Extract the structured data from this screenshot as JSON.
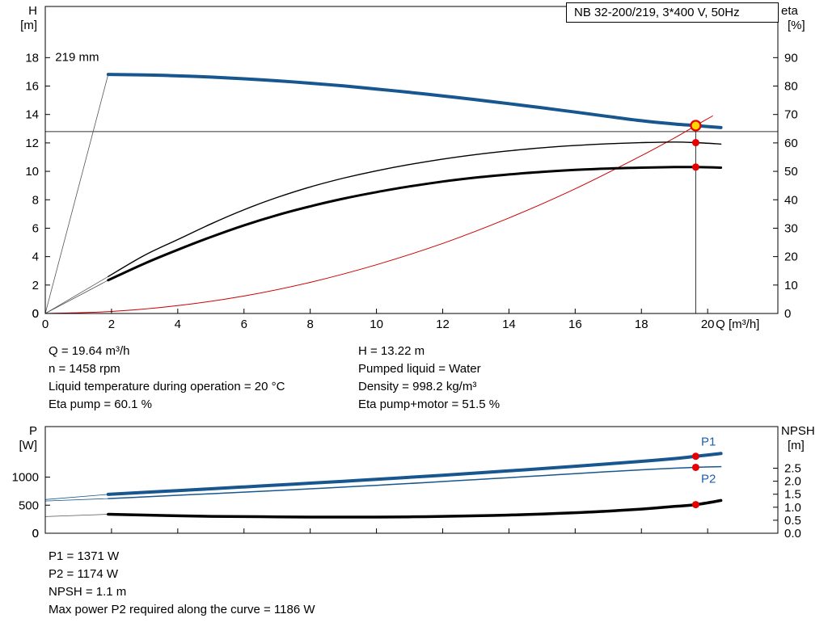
{
  "title_box": {
    "label": "NB 32-200/219, 3*400 V, 50Hz"
  },
  "info_top": {
    "left": [
      "Q = 19.64 m³/h",
      "n = 1458 rpm",
      "Liquid temperature during operation = 20 °C",
      "Eta pump = 60.1 %"
    ],
    "right": [
      "H = 13.22 m",
      "Pumped liquid = Water",
      "Density = 998.2 kg/m³",
      "Eta pump+motor = 51.5 %"
    ]
  },
  "info_bottom": [
    "P1 = 1371 W",
    "P2 = 1174 W",
    "NPSH = 1.1 m",
    "Max power P2 required along the curve = 1186 W"
  ],
  "colors": {
    "curve_blue": "#17568f",
    "curve_black": "#000000",
    "curve_red": "#cc0000",
    "lead_gray": "#555555",
    "marker_red": "#e60000",
    "marker_yellow": "#ffd400",
    "label_blue": "#1f5fa8",
    "crosshair": "#333333"
  },
  "chart_data": [
    {
      "id": "hq",
      "type": "line",
      "title": "NB 32-200/219, 3*400 V, 50Hz",
      "x_axis": {
        "label": "Q [m³/h]",
        "range": [
          0,
          22.12
        ],
        "ticks": [
          {
            "v": 0,
            "t": "0"
          },
          {
            "v": 2,
            "t": "2"
          },
          {
            "v": 4,
            "t": "4"
          },
          {
            "v": 6,
            "t": "6"
          },
          {
            "v": 8,
            "t": "8"
          },
          {
            "v": 10,
            "t": "10"
          },
          {
            "v": 12,
            "t": "12"
          },
          {
            "v": 14,
            "t": "14"
          },
          {
            "v": 16,
            "t": "16"
          },
          {
            "v": 18,
            "t": "18"
          },
          {
            "v": 20,
            "t": "20"
          }
        ]
      },
      "y_left": {
        "label": [
          "H",
          "[m]"
        ],
        "range": [
          0,
          21.6
        ],
        "ticks": [
          {
            "v": 0,
            "t": "0"
          },
          {
            "v": 2,
            "t": "2"
          },
          {
            "v": 4,
            "t": "4"
          },
          {
            "v": 6,
            "t": "6"
          },
          {
            "v": 8,
            "t": "8"
          },
          {
            "v": 10,
            "t": "10"
          },
          {
            "v": 12,
            "t": "12"
          },
          {
            "v": 14,
            "t": "14"
          },
          {
            "v": 16,
            "t": "16"
          },
          {
            "v": 18,
            "t": "18"
          }
        ]
      },
      "y_right": {
        "label": [
          "eta",
          "[%]"
        ],
        "range": [
          0,
          108
        ],
        "ticks": [
          {
            "v": 0,
            "t": "0"
          },
          {
            "v": 10,
            "t": "10"
          },
          {
            "v": 20,
            "t": "20"
          },
          {
            "v": 30,
            "t": "30"
          },
          {
            "v": 40,
            "t": "40"
          },
          {
            "v": 50,
            "t": "50"
          },
          {
            "v": 60,
            "t": "60"
          },
          {
            "v": 70,
            "t": "70"
          },
          {
            "v": 80,
            "t": "80"
          },
          {
            "v": 90,
            "t": "90"
          }
        ]
      },
      "crosshair": {
        "q": 19.64,
        "v_top": 13.22,
        "h_line": 12.8
      },
      "annotations": [
        {
          "text": "219 mm",
          "q": 0.3,
          "v": 17.75,
          "axis": "left",
          "color": "#000000"
        }
      ],
      "series": [
        {
          "name": "pump-head-leadin",
          "axis": "left",
          "color": "#555555",
          "width": 0.8,
          "smooth": false,
          "points": [
            [
              0,
              0
            ],
            [
              1.9,
              16.82
            ]
          ]
        },
        {
          "name": "eta-pump-leadin",
          "axis": "right",
          "color": "#555555",
          "width": 0.8,
          "smooth": false,
          "points": [
            [
              0,
              0
            ],
            [
              1.9,
              13
            ]
          ]
        },
        {
          "name": "eta-pump-motor-leadin",
          "axis": "right",
          "color": "#555555",
          "width": 0.8,
          "smooth": false,
          "points": [
            [
              0,
              0
            ],
            [
              1.9,
              11.7
            ]
          ]
        },
        {
          "name": "system-curve",
          "axis": "left",
          "color": "#cc0000",
          "width": 1,
          "smooth": true,
          "points": [
            [
              0,
              0
            ],
            [
              2,
              0.14
            ],
            [
              4,
              0.55
            ],
            [
              6,
              1.23
            ],
            [
              8,
              2.19
            ],
            [
              10,
              3.43
            ],
            [
              12,
              4.93
            ],
            [
              14,
              6.72
            ],
            [
              16,
              8.77
            ],
            [
              18,
              11.1
            ],
            [
              19,
              12.35
            ],
            [
              19.64,
              13.22
            ],
            [
              20.15,
              13.9
            ]
          ]
        },
        {
          "name": "eta-pump",
          "axis": "right",
          "color": "#000000",
          "width": 1.4,
          "smooth": true,
          "points": [
            [
              1.9,
              13
            ],
            [
              3,
              20.5
            ],
            [
              4,
              26
            ],
            [
              5,
              31.5
            ],
            [
              6,
              36.5
            ],
            [
              7,
              40.8
            ],
            [
              8,
              44.5
            ],
            [
              9,
              47.6
            ],
            [
              10,
              50.2
            ],
            [
              11,
              52.4
            ],
            [
              12,
              54.3
            ],
            [
              13,
              55.9
            ],
            [
              14,
              57.2
            ],
            [
              15,
              58.3
            ],
            [
              16,
              59.1
            ],
            [
              17,
              59.7
            ],
            [
              18,
              60.1
            ],
            [
              19,
              60.3
            ],
            [
              19.64,
              60.1
            ],
            [
              20.4,
              59.6
            ]
          ]
        },
        {
          "name": "eta-pump-motor",
          "axis": "right",
          "color": "#000000",
          "width": 3,
          "smooth": true,
          "points": [
            [
              1.9,
              11.7
            ],
            [
              3,
              17.6
            ],
            [
              4,
              22.4
            ],
            [
              5,
              26.9
            ],
            [
              6,
              31
            ],
            [
              7,
              34.6
            ],
            [
              8,
              37.7
            ],
            [
              9,
              40.4
            ],
            [
              10,
              42.7
            ],
            [
              11,
              44.7
            ],
            [
              12,
              46.4
            ],
            [
              13,
              47.8
            ],
            [
              14,
              48.9
            ],
            [
              15,
              49.8
            ],
            [
              16,
              50.5
            ],
            [
              17,
              51
            ],
            [
              18,
              51.3
            ],
            [
              19,
              51.5
            ],
            [
              19.64,
              51.5
            ],
            [
              20.4,
              51.3
            ]
          ]
        },
        {
          "name": "pump-head-219mm",
          "axis": "left",
          "color": "#17568f",
          "width": 4,
          "smooth": true,
          "points": [
            [
              1.9,
              16.82
            ],
            [
              3,
              16.78
            ],
            [
              4,
              16.72
            ],
            [
              5,
              16.63
            ],
            [
              6,
              16.51
            ],
            [
              7,
              16.37
            ],
            [
              8,
              16.2
            ],
            [
              9,
              16.01
            ],
            [
              10,
              15.79
            ],
            [
              11,
              15.56
            ],
            [
              12,
              15.31
            ],
            [
              13,
              15.04
            ],
            [
              14,
              14.76
            ],
            [
              15,
              14.47
            ],
            [
              16,
              14.17
            ],
            [
              17,
              13.86
            ],
            [
              18,
              13.56
            ],
            [
              19,
              13.33
            ],
            [
              19.64,
              13.22
            ],
            [
              20.4,
              13.08
            ]
          ]
        }
      ],
      "markers": [
        {
          "name": "duty-point-marker",
          "style": "duty",
          "axis": "left",
          "q": 19.64,
          "v": 13.22
        },
        {
          "name": "eta-pump-point-marker",
          "style": "dot",
          "axis": "right",
          "q": 19.64,
          "v": 60.1
        },
        {
          "name": "eta-pump-motor-point-marker",
          "style": "dot",
          "axis": "right",
          "q": 19.64,
          "v": 51.5
        }
      ]
    },
    {
      "id": "power",
      "type": "line",
      "title": "",
      "x_axis": {
        "label": "",
        "range": [
          0,
          22.12
        ],
        "ticks": [
          {
            "v": 0,
            "t": ""
          },
          {
            "v": 2,
            "t": ""
          },
          {
            "v": 4,
            "t": ""
          },
          {
            "v": 6,
            "t": ""
          },
          {
            "v": 8,
            "t": ""
          },
          {
            "v": 10,
            "t": ""
          },
          {
            "v": 12,
            "t": ""
          },
          {
            "v": 14,
            "t": ""
          },
          {
            "v": 16,
            "t": ""
          },
          {
            "v": 18,
            "t": ""
          },
          {
            "v": 20,
            "t": ""
          }
        ]
      },
      "y_left": {
        "label": [
          "P",
          "[W]"
        ],
        "range": [
          0,
          1900
        ],
        "ticks": [
          {
            "v": 0,
            "t": "0"
          },
          {
            "v": 500,
            "t": "500"
          },
          {
            "v": 1000,
            "t": "1000"
          }
        ]
      },
      "y_right": {
        "label": [
          "NPSH",
          "[m]"
        ],
        "range": [
          0,
          4.1
        ],
        "ticks": [
          {
            "v": 0,
            "t": "0.0"
          },
          {
            "v": 0.5,
            "t": "0.5"
          },
          {
            "v": 1,
            "t": "1.0"
          },
          {
            "v": 1.5,
            "t": "1.5"
          },
          {
            "v": 2,
            "t": "2.0"
          },
          {
            "v": 2.5,
            "t": "2.5"
          }
        ]
      },
      "annotations": [
        {
          "text": "P1",
          "q": 19.8,
          "v": 1560,
          "axis": "left",
          "color": "#1f5fa8"
        },
        {
          "text": "P2",
          "q": 19.8,
          "v": 900,
          "axis": "left",
          "color": "#1f5fa8"
        }
      ],
      "series": [
        {
          "name": "p1-leadin",
          "axis": "left",
          "color": "#17568f",
          "width": 0.8,
          "smooth": false,
          "points": [
            [
              0,
              600
            ],
            [
              1.9,
              693
            ]
          ]
        },
        {
          "name": "p2-leadin",
          "axis": "left",
          "color": "#17568f",
          "width": 0.8,
          "smooth": false,
          "points": [
            [
              0,
              575
            ],
            [
              1.9,
              617
            ]
          ]
        },
        {
          "name": "npsh-leadin",
          "axis": "right",
          "color": "#555555",
          "width": 0.8,
          "smooth": false,
          "points": [
            [
              0,
              0.64
            ],
            [
              1.9,
              0.73
            ]
          ]
        },
        {
          "name": "p2-power",
          "axis": "left",
          "color": "#17568f",
          "width": 1.5,
          "smooth": true,
          "points": [
            [
              1.9,
              617
            ],
            [
              3,
              648
            ],
            [
              4,
              676
            ],
            [
              5,
              704
            ],
            [
              6,
              732
            ],
            [
              7,
              761
            ],
            [
              8,
              791
            ],
            [
              9,
              822
            ],
            [
              10,
              854
            ],
            [
              11,
              887
            ],
            [
              12,
              921
            ],
            [
              13,
              956
            ],
            [
              14,
              991
            ],
            [
              15,
              1027
            ],
            [
              16,
              1062
            ],
            [
              17,
              1097
            ],
            [
              18,
              1130
            ],
            [
              19,
              1158
            ],
            [
              19.64,
              1174
            ],
            [
              20.4,
              1186
            ]
          ]
        },
        {
          "name": "p1-power",
          "axis": "left",
          "color": "#17568f",
          "width": 4,
          "smooth": true,
          "points": [
            [
              1.9,
              693
            ],
            [
              3,
              728
            ],
            [
              4,
              760
            ],
            [
              5,
              792
            ],
            [
              6,
              825
            ],
            [
              7,
              858
            ],
            [
              8,
              892
            ],
            [
              9,
              926
            ],
            [
              10,
              961
            ],
            [
              11,
              997
            ],
            [
              12,
              1034
            ],
            [
              13,
              1072
            ],
            [
              14,
              1111
            ],
            [
              15,
              1151
            ],
            [
              16,
              1193
            ],
            [
              17,
              1236
            ],
            [
              18,
              1281
            ],
            [
              19,
              1330
            ],
            [
              19.64,
              1371
            ],
            [
              20.4,
              1420
            ]
          ]
        },
        {
          "name": "npsh-curve",
          "axis": "right",
          "color": "#000000",
          "width": 3.5,
          "smooth": true,
          "points": [
            [
              1.9,
              0.73
            ],
            [
              3,
              0.7
            ],
            [
              4,
              0.67
            ],
            [
              5,
              0.65
            ],
            [
              6,
              0.64
            ],
            [
              7,
              0.63
            ],
            [
              8,
              0.62
            ],
            [
              9,
              0.62
            ],
            [
              10,
              0.62
            ],
            [
              11,
              0.63
            ],
            [
              12,
              0.65
            ],
            [
              13,
              0.67
            ],
            [
              14,
              0.7
            ],
            [
              15,
              0.74
            ],
            [
              16,
              0.79
            ],
            [
              17,
              0.85
            ],
            [
              18,
              0.93
            ],
            [
              19,
              1.03
            ],
            [
              19.64,
              1.1
            ],
            [
              20.4,
              1.26
            ]
          ]
        }
      ],
      "markers": [
        {
          "name": "p1-point-marker",
          "style": "dot",
          "axis": "left",
          "q": 19.64,
          "v": 1371
        },
        {
          "name": "p2-point-marker",
          "style": "dot",
          "axis": "left",
          "q": 19.64,
          "v": 1174
        },
        {
          "name": "npsh-point-marker",
          "style": "dot",
          "axis": "right",
          "q": 19.64,
          "v": 1.1
        }
      ]
    }
  ]
}
